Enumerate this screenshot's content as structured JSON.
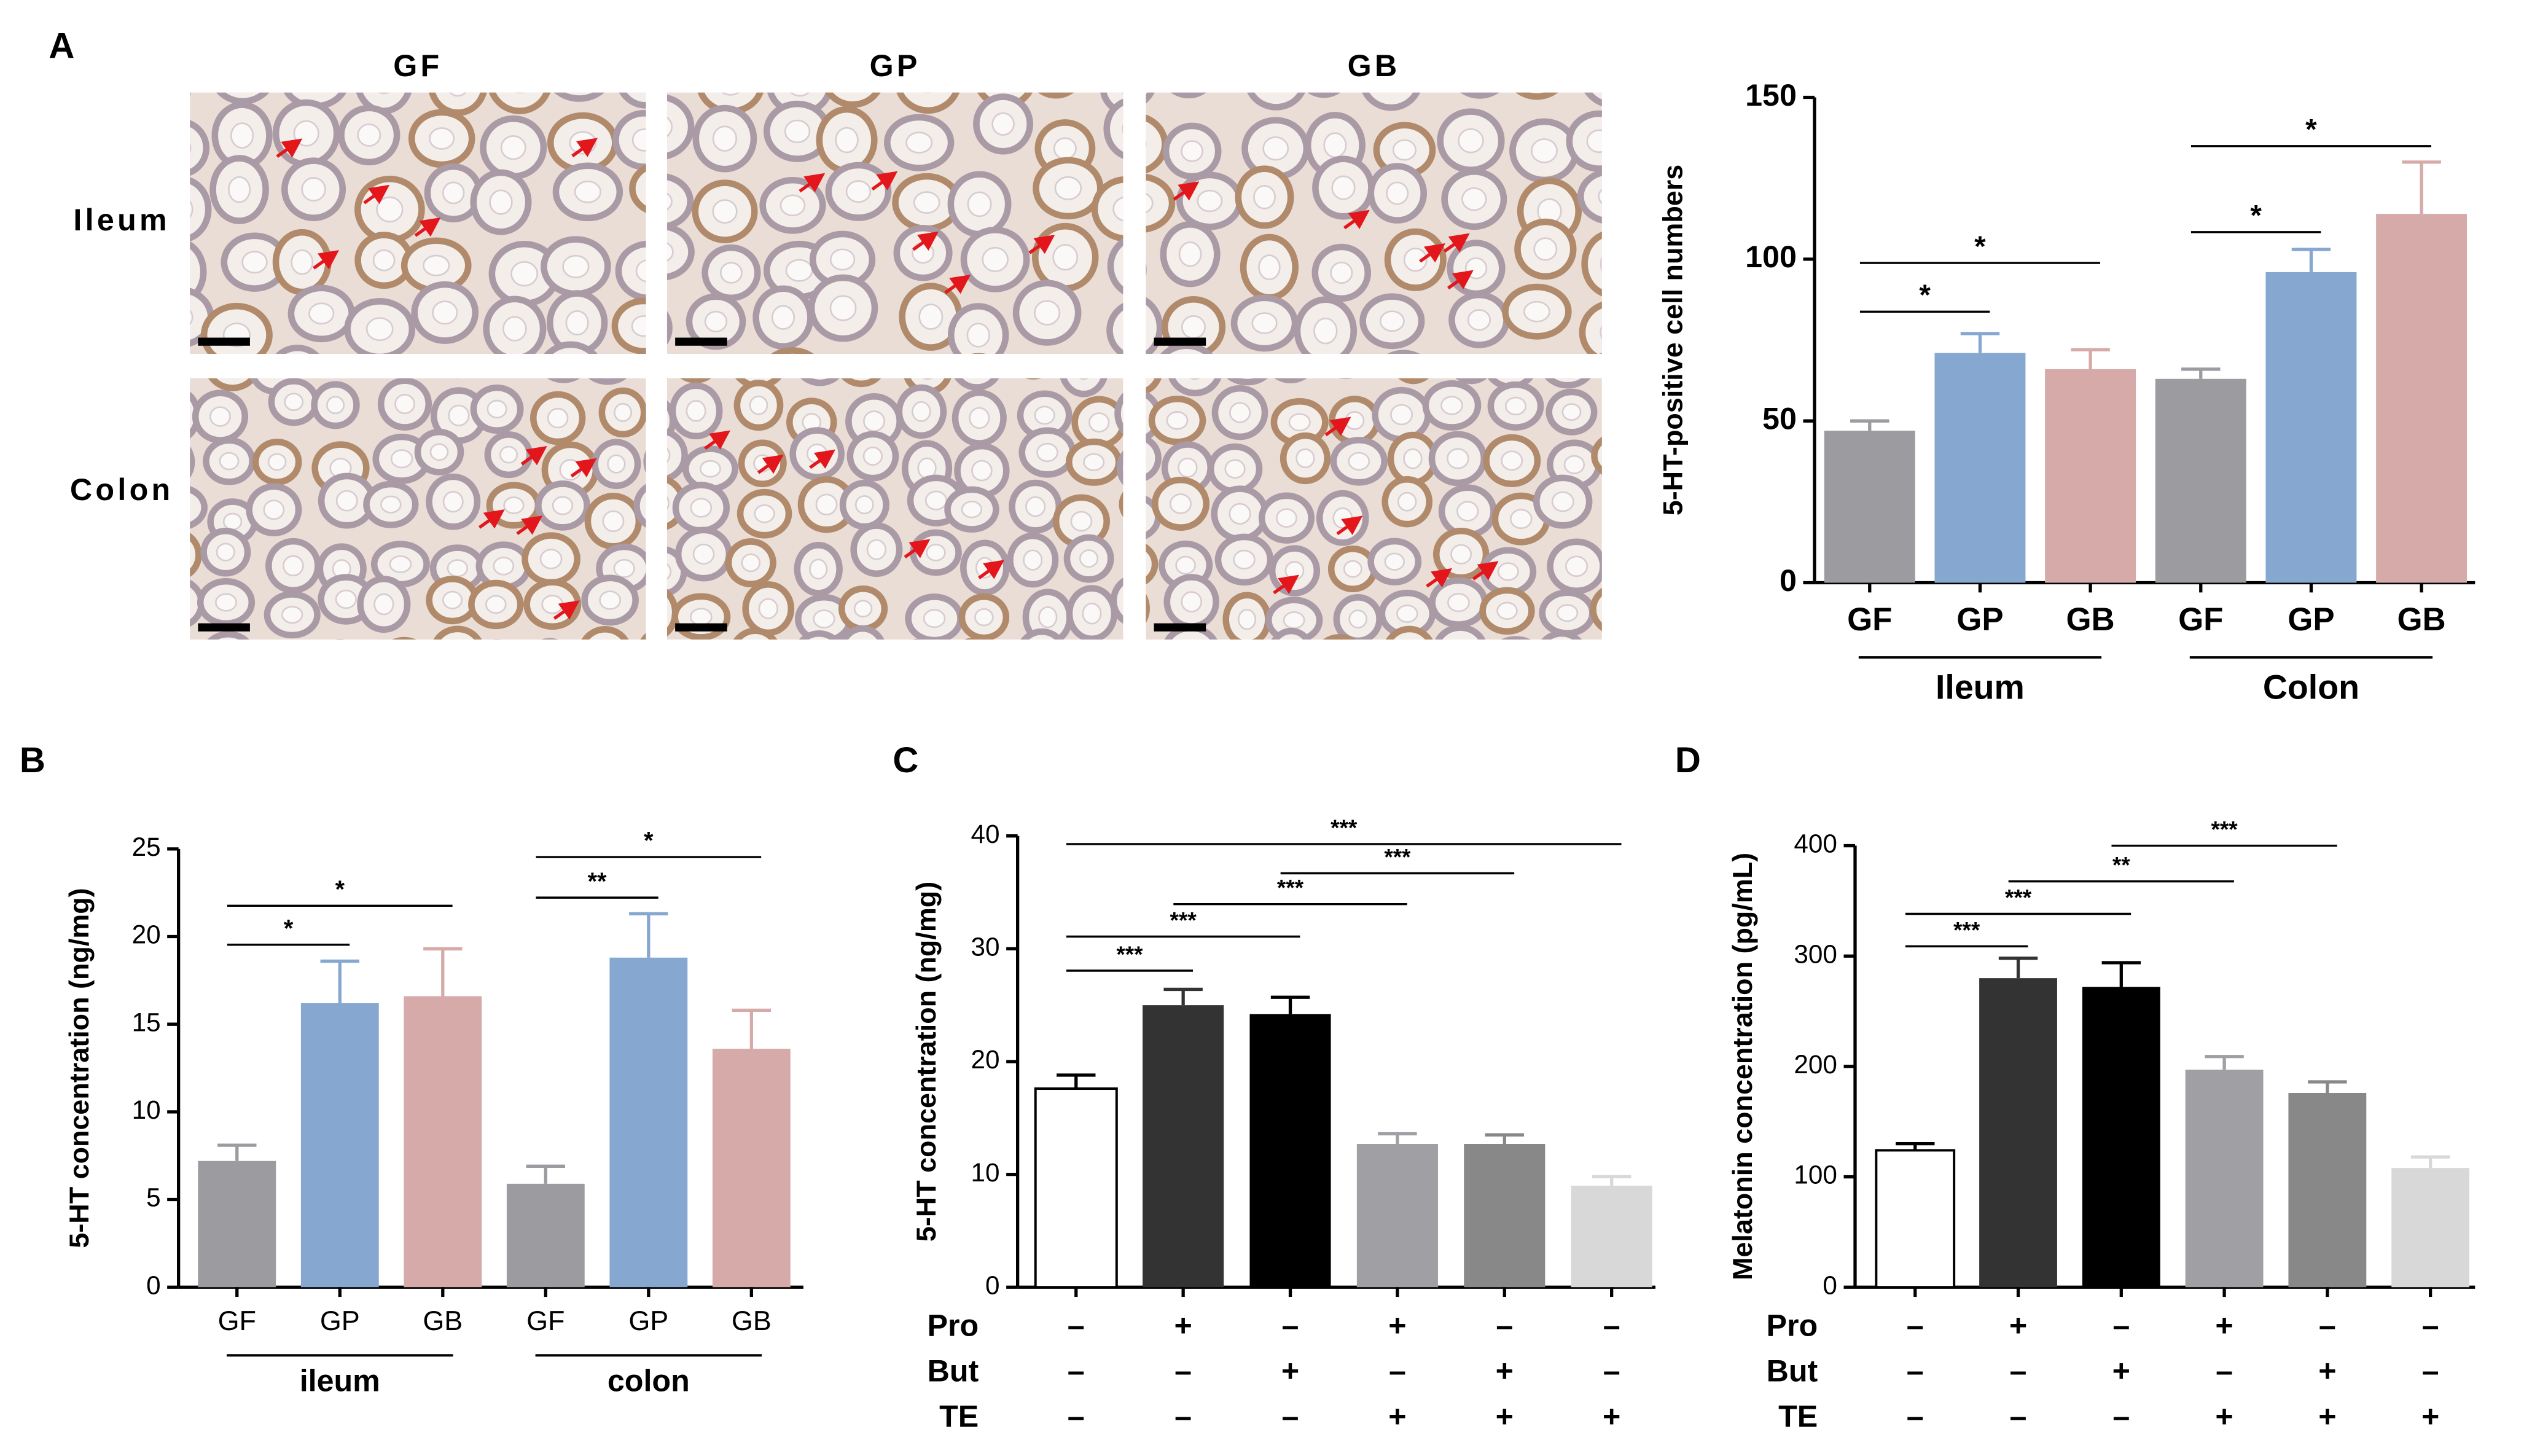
{
  "micrographs": {
    "label": "A",
    "columns": [
      "GF",
      "GP",
      "GB"
    ],
    "rows": [
      "Ileum",
      "Colon"
    ]
  },
  "chart_data": [
    {
      "type": "bar",
      "ylabel": "5-HT-positive cell numbers",
      "categories": [
        "GF",
        "GP",
        "GB",
        "GF",
        "GP",
        "GB"
      ],
      "values": [
        47,
        71,
        66,
        63,
        96,
        114
      ],
      "errors": [
        3,
        6,
        6,
        3,
        7,
        16
      ],
      "colors": [
        "#9b9ba0",
        "#86a8d0",
        "#d5aaa9",
        "#9b9ba0",
        "#86a8d0",
        "#d5aaa9"
      ],
      "ylim": [
        0,
        150
      ],
      "yticks": [
        0,
        50,
        100,
        150
      ],
      "groups": [
        {
          "label": "Ileum",
          "bars": [
            0,
            2
          ]
        },
        {
          "label": "Colon",
          "bars": [
            3,
            5
          ]
        }
      ],
      "significance": [
        {
          "bars": [
            0,
            1
          ],
          "label": "*"
        },
        {
          "bars": [
            0,
            2
          ],
          "label": "*"
        },
        {
          "bars": [
            3,
            4
          ],
          "label": "*"
        },
        {
          "bars": [
            3,
            5
          ],
          "label": "*"
        }
      ]
    },
    {
      "type": "bar",
      "label": "B",
      "ylabel": "5-HT concentration (ng/mg)",
      "categories": [
        "GF",
        "GP",
        "GB",
        "GF",
        "GP",
        "GB"
      ],
      "values": [
        7.2,
        16.2,
        16.6,
        5.9,
        18.8,
        13.6
      ],
      "errors": [
        0.9,
        2.4,
        2.7,
        1.0,
        2.5,
        2.2
      ],
      "colors": [
        "#9b9ba0",
        "#86a8d0",
        "#d5aaa9",
        "#9b9ba0",
        "#86a8d0",
        "#d5aaa9"
      ],
      "ylim": [
        0,
        25
      ],
      "yticks": [
        0,
        5,
        10,
        15,
        20,
        25
      ],
      "groups": [
        {
          "label": "ileum",
          "bars": [
            0,
            2
          ]
        },
        {
          "label": "colon",
          "bars": [
            3,
            5
          ]
        }
      ],
      "significance": [
        {
          "bars": [
            0,
            1
          ],
          "label": "*"
        },
        {
          "bars": [
            0,
            2
          ],
          "label": "*"
        },
        {
          "bars": [
            3,
            4
          ],
          "label": "**"
        },
        {
          "bars": [
            3,
            5
          ],
          "label": "*"
        }
      ]
    },
    {
      "type": "bar",
      "label": "C",
      "ylabel": "5-HT concentration (ng/mg)",
      "values": [
        17.6,
        25.0,
        24.2,
        12.7,
        12.7,
        9.0
      ],
      "errors": [
        1.2,
        1.4,
        1.5,
        0.9,
        0.8,
        0.8
      ],
      "colors": [
        "#ffffff",
        "#333333",
        "#000000",
        "#a0a0a4",
        "#888888",
        "#d8d8d8"
      ],
      "ylim": [
        0,
        40
      ],
      "yticks": [
        0,
        10,
        20,
        30,
        40
      ],
      "conditions": [
        {
          "name": "Pro",
          "marks": [
            "–",
            "+",
            "–",
            "+",
            "–",
            "–"
          ]
        },
        {
          "name": "But",
          "marks": [
            "–",
            "–",
            "+",
            "–",
            "+",
            "–"
          ]
        },
        {
          "name": "TE",
          "marks": [
            "–",
            "–",
            "–",
            "+",
            "+",
            "+"
          ]
        }
      ],
      "significance": [
        {
          "bars": [
            0,
            1
          ],
          "label": "***"
        },
        {
          "bars": [
            0,
            2
          ],
          "label": "***"
        },
        {
          "bars": [
            1,
            3
          ],
          "label": "***"
        },
        {
          "bars": [
            2,
            4
          ],
          "label": "***"
        },
        {
          "bars": [
            0,
            5
          ],
          "label": "***"
        }
      ]
    },
    {
      "type": "bar",
      "label": "D",
      "ylabel": "Melatonin concentration (pg/mL)",
      "values": [
        124,
        280,
        272,
        197,
        176,
        108
      ],
      "errors": [
        6,
        18,
        22,
        12,
        10,
        10
      ],
      "colors": [
        "#ffffff",
        "#333333",
        "#000000",
        "#a0a0a4",
        "#888888",
        "#d8d8d8"
      ],
      "ylim": [
        0,
        400
      ],
      "yticks": [
        0,
        100,
        200,
        300,
        400
      ],
      "conditions": [
        {
          "name": "Pro",
          "marks": [
            "–",
            "+",
            "–",
            "+",
            "–",
            "–"
          ]
        },
        {
          "name": "But",
          "marks": [
            "–",
            "–",
            "+",
            "–",
            "+",
            "–"
          ]
        },
        {
          "name": "TE",
          "marks": [
            "–",
            "–",
            "–",
            "+",
            "+",
            "+"
          ]
        }
      ],
      "significance": [
        {
          "bars": [
            0,
            1
          ],
          "label": "***"
        },
        {
          "bars": [
            0,
            2
          ],
          "label": "***"
        },
        {
          "bars": [
            1,
            3
          ],
          "label": "**"
        },
        {
          "bars": [
            2,
            4
          ],
          "label": "***"
        }
      ]
    }
  ]
}
